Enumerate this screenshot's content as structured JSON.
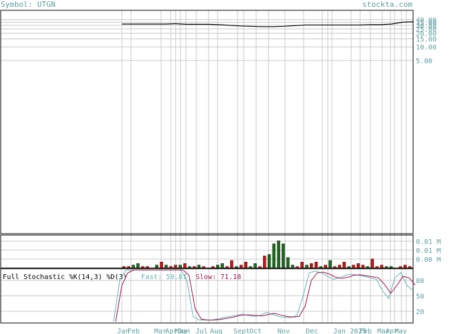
{
  "header": {
    "symbol": "Symbol: UTGN",
    "site": "stockta.com"
  },
  "chart_data": [
    {
      "type": "line",
      "name": "price",
      "y_scale": "log",
      "y_ticks": [
        "40.00",
        "35.00",
        "30.00",
        "25.00",
        "20.00",
        "15.00",
        "10.00",
        "5.00"
      ],
      "y_tick_values": [
        40,
        35,
        30,
        25,
        20,
        15,
        10,
        5
      ],
      "x": [
        0,
        4,
        8,
        12,
        16,
        20,
        24,
        28,
        32,
        36,
        40,
        44,
        48,
        52,
        56,
        60,
        64,
        68,
        72,
        76,
        80,
        84,
        88,
        92,
        96,
        100,
        104,
        108
      ],
      "values": [
        32,
        32,
        32,
        32,
        32,
        32.5,
        31.5,
        31.5,
        31.5,
        31,
        30,
        29,
        28.5,
        28,
        28,
        28.5,
        29.5,
        30.5,
        30.5,
        30.5,
        30.5,
        30.5,
        30.5,
        31,
        31,
        32,
        35,
        36
      ]
    },
    {
      "type": "bar",
      "name": "volume",
      "y_ticks": [
        "0.01 M",
        "0.01 M",
        "0.00 M"
      ],
      "values": [
        1,
        1,
        2,
        3,
        1,
        1,
        0,
        2,
        4,
        2,
        1,
        2,
        2,
        3,
        1,
        1,
        2,
        1,
        0,
        1,
        2,
        3,
        1,
        5,
        1,
        2,
        4,
        1,
        3,
        1,
        8,
        9,
        16,
        18,
        16,
        7,
        2,
        1,
        4,
        2,
        3,
        4,
        1,
        2,
        5,
        1,
        2,
        4,
        1,
        2,
        3,
        2,
        1,
        6,
        1,
        2,
        1,
        1,
        0,
        1,
        2,
        1
      ],
      "colors": [
        "r",
        "r",
        "g",
        "g",
        "r",
        "r",
        "g",
        "g",
        "r",
        "g",
        "r",
        "r",
        "g",
        "r",
        "g",
        "r",
        "g",
        "r",
        "g",
        "r",
        "g",
        "g",
        "r",
        "r",
        "g",
        "r",
        "r",
        "g",
        "g",
        "r",
        "r",
        "g",
        "g",
        "g",
        "g",
        "g",
        "g",
        "r",
        "r",
        "g",
        "r",
        "r",
        "g",
        "r",
        "g",
        "r",
        "r",
        "r",
        "g",
        "r",
        "r",
        "r",
        "g",
        "r",
        "r",
        "r",
        "g",
        "g",
        "r",
        "r",
        "r",
        "r"
      ]
    },
    {
      "type": "line",
      "name": "stochastic",
      "title": "Full Stochastic %K(14,3) %D(3)",
      "fast_label": "Fast: 59.81",
      "slow_label": "Slow: 71.18",
      "y_ticks": [
        "80",
        "50",
        "20"
      ],
      "y_tick_values": [
        80,
        50,
        20
      ],
      "ylim": [
        0,
        100
      ],
      "fast": [
        0,
        80,
        100,
        100,
        100,
        100,
        100,
        100,
        100,
        100,
        100,
        100,
        80,
        10,
        3,
        3,
        3,
        5,
        8,
        10,
        12,
        15,
        12,
        10,
        12,
        18,
        14,
        10,
        8,
        8,
        12,
        50,
        95,
        98,
        95,
        88,
        82,
        85,
        90,
        92,
        90,
        88,
        85,
        82,
        60,
        45,
        85,
        95,
        70,
        59.81
      ],
      "slow": [
        0,
        70,
        95,
        100,
        100,
        100,
        100,
        100,
        100,
        100,
        100,
        100,
        90,
        25,
        5,
        3,
        3,
        4,
        6,
        8,
        11,
        13,
        13,
        12,
        11,
        14,
        16,
        13,
        10,
        9,
        10,
        30,
        80,
        95,
        96,
        92,
        86,
        84,
        86,
        90,
        91,
        89,
        87,
        85,
        72,
        55,
        70,
        88,
        85,
        71.18
      ]
    }
  ],
  "x_axis": {
    "labels": [
      "Jan",
      "Feb",
      "Mar",
      "Apr",
      "May",
      "Jun",
      "Jul",
      "Aug",
      "Sept",
      "Oct",
      "Nov",
      "Dec",
      "Jan 2025",
      "Feb",
      "Mar",
      "Apr",
      "May"
    ]
  },
  "colors": {
    "axis_text": "#5f9ea0",
    "fast_line": "#5fb4b4",
    "slow_line": "#a0104a",
    "volume_up": "#1a6b1a",
    "volume_down": "#cc1111",
    "grid": "#c8c8c8",
    "frame": "#000000"
  }
}
